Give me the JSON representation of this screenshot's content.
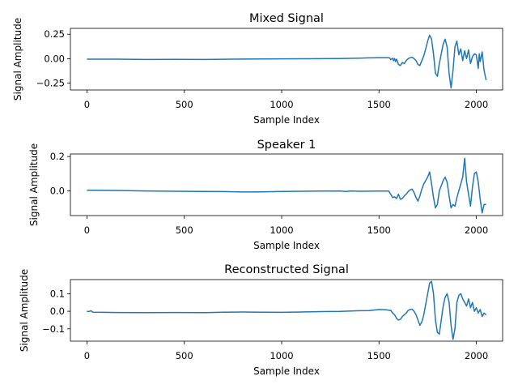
{
  "chart_data": [
    {
      "type": "line",
      "title": "Mixed Signal",
      "xlabel": "Sample Index",
      "ylabel": "Signal Amplitude",
      "xlim": [
        -85,
        2135
      ],
      "ylim": [
        -0.32,
        0.31
      ],
      "xticks": [
        0,
        500,
        1000,
        1500,
        2000
      ],
      "yticks": [
        0.25,
        0.0,
        -0.25
      ],
      "ytick_labels": [
        "0.25",
        "0.00",
        "−0.25"
      ],
      "color": "#1f77b4",
      "grid": false,
      "series": [
        {
          "x": [
            0,
            150,
            300,
            450,
            600,
            700,
            800,
            900,
            1000,
            1100,
            1200,
            1300,
            1350,
            1400,
            1450,
            1500,
            1540,
            1555,
            1560,
            1570,
            1575,
            1580,
            1585,
            1590,
            1600,
            1610,
            1620,
            1630,
            1640,
            1650,
            1660,
            1670,
            1680,
            1690,
            1700,
            1710,
            1720,
            1730,
            1740,
            1750,
            1760,
            1770,
            1780,
            1790,
            1800,
            1810,
            1820,
            1830,
            1840,
            1850,
            1860,
            1870,
            1880,
            1890,
            1900,
            1910,
            1920,
            1930,
            1940,
            1950,
            1960,
            1970,
            1980,
            1990,
            2000,
            2010,
            2015,
            2020,
            2030,
            2040,
            2050
          ],
          "y": [
            -0.005,
            -0.005,
            -0.008,
            -0.007,
            -0.008,
            -0.006,
            -0.004,
            -0.003,
            -0.002,
            -0.001,
            0.0,
            0.002,
            0.003,
            0.006,
            0.008,
            0.01,
            0.01,
            0.008,
            -0.01,
            0.005,
            -0.02,
            0.002,
            -0.03,
            -0.005,
            -0.06,
            -0.07,
            -0.04,
            -0.05,
            -0.02,
            0.0,
            0.01,
            0.015,
            0.0,
            -0.02,
            -0.06,
            -0.07,
            -0.02,
            0.03,
            0.1,
            0.18,
            0.24,
            0.2,
            0.05,
            -0.15,
            -0.18,
            -0.05,
            0.05,
            0.15,
            0.2,
            0.12,
            -0.15,
            -0.3,
            -0.12,
            0.12,
            0.18,
            0.04,
            0.1,
            -0.02,
            0.08,
            0.0,
            0.09,
            -0.05,
            0.02,
            0.05,
            0.04,
            -0.1,
            0.05,
            -0.03,
            0.07,
            -0.12,
            -0.22
          ]
        }
      ]
    },
    {
      "type": "line",
      "title": "Speaker 1",
      "xlabel": "Sample Index",
      "ylabel": "Signal Amplitude",
      "xlim": [
        -85,
        2135
      ],
      "ylim": [
        -0.145,
        0.215
      ],
      "xticks": [
        0,
        500,
        1000,
        1500,
        2000
      ],
      "yticks": [
        0.2,
        0.0
      ],
      "ytick_labels": [
        "0.2",
        "0.0"
      ],
      "color": "#1f77b4",
      "grid": false,
      "series": [
        {
          "x": [
            0,
            150,
            300,
            450,
            600,
            700,
            800,
            900,
            1000,
            1100,
            1200,
            1300,
            1330,
            1360,
            1400,
            1500,
            1550,
            1560,
            1570,
            1580,
            1590,
            1600,
            1610,
            1620,
            1630,
            1640,
            1650,
            1660,
            1670,
            1680,
            1690,
            1700,
            1710,
            1720,
            1730,
            1740,
            1750,
            1760,
            1770,
            1780,
            1790,
            1800,
            1810,
            1820,
            1830,
            1840,
            1850,
            1860,
            1870,
            1880,
            1890,
            1900,
            1910,
            1920,
            1930,
            1940,
            1950,
            1960,
            1970,
            1980,
            1990,
            2000,
            2010,
            2020,
            2030,
            2040,
            2050
          ],
          "y": [
            0.003,
            0.002,
            -0.001,
            -0.003,
            -0.004,
            -0.005,
            -0.007,
            -0.006,
            -0.004,
            -0.003,
            -0.002,
            -0.001,
            -0.004,
            -0.001,
            -0.003,
            -0.002,
            -0.002,
            -0.02,
            -0.04,
            -0.035,
            -0.045,
            -0.02,
            -0.05,
            -0.045,
            -0.03,
            -0.02,
            -0.005,
            0.005,
            0.01,
            -0.01,
            -0.04,
            -0.06,
            -0.03,
            0.01,
            0.04,
            0.06,
            0.08,
            0.11,
            0.04,
            -0.04,
            -0.1,
            -0.08,
            0.0,
            0.03,
            0.06,
            0.08,
            0.05,
            -0.03,
            -0.1,
            -0.08,
            -0.09,
            -0.04,
            0.0,
            0.04,
            0.08,
            0.19,
            0.05,
            -0.02,
            -0.09,
            0.02,
            0.1,
            0.11,
            0.05,
            -0.05,
            -0.13,
            -0.08,
            -0.08
          ]
        }
      ]
    },
    {
      "type": "line",
      "title": "Reconstructed Signal",
      "xlabel": "Sample Index",
      "ylabel": "Signal Amplitude",
      "xlim": [
        -85,
        2135
      ],
      "ylim": [
        -0.17,
        0.18
      ],
      "xticks": [
        0,
        500,
        1000,
        1500,
        2000
      ],
      "yticks": [
        0.1,
        0.0,
        -0.1
      ],
      "ytick_labels": [
        "0.1",
        "0.0",
        "−0.1"
      ],
      "color": "#1f77b4",
      "grid": false,
      "series": [
        {
          "x": [
            0,
            10,
            20,
            30,
            150,
            300,
            450,
            600,
            700,
            800,
            900,
            1000,
            1100,
            1200,
            1300,
            1400,
            1450,
            1500,
            1540,
            1555,
            1560,
            1570,
            1580,
            1590,
            1600,
            1610,
            1620,
            1630,
            1640,
            1650,
            1660,
            1670,
            1680,
            1690,
            1700,
            1710,
            1720,
            1730,
            1740,
            1750,
            1760,
            1770,
            1780,
            1790,
            1800,
            1810,
            1820,
            1830,
            1840,
            1850,
            1860,
            1870,
            1880,
            1890,
            1900,
            1910,
            1920,
            1930,
            1940,
            1950,
            1960,
            1970,
            1980,
            1990,
            2000,
            2010,
            2020,
            2030,
            2040,
            2050
          ],
          "y": [
            0.0,
            -0.002,
            0.003,
            -0.005,
            -0.007,
            -0.008,
            -0.007,
            -0.008,
            -0.005,
            -0.004,
            -0.005,
            -0.006,
            -0.004,
            -0.002,
            -0.001,
            0.003,
            0.004,
            0.01,
            0.008,
            0.004,
            0.006,
            -0.01,
            -0.02,
            -0.04,
            -0.05,
            -0.045,
            -0.03,
            -0.02,
            -0.01,
            0.005,
            0.01,
            0.012,
            0.0,
            -0.02,
            -0.05,
            -0.08,
            -0.06,
            -0.02,
            0.04,
            0.1,
            0.16,
            0.17,
            0.1,
            -0.05,
            -0.12,
            -0.13,
            -0.05,
            0.03,
            0.08,
            0.1,
            0.05,
            -0.08,
            -0.16,
            -0.1,
            0.05,
            0.09,
            0.1,
            0.07,
            0.05,
            0.03,
            0.07,
            0.02,
            0.05,
            0.0,
            0.02,
            -0.01,
            0.01,
            -0.03,
            -0.01,
            -0.02
          ]
        }
      ]
    }
  ]
}
